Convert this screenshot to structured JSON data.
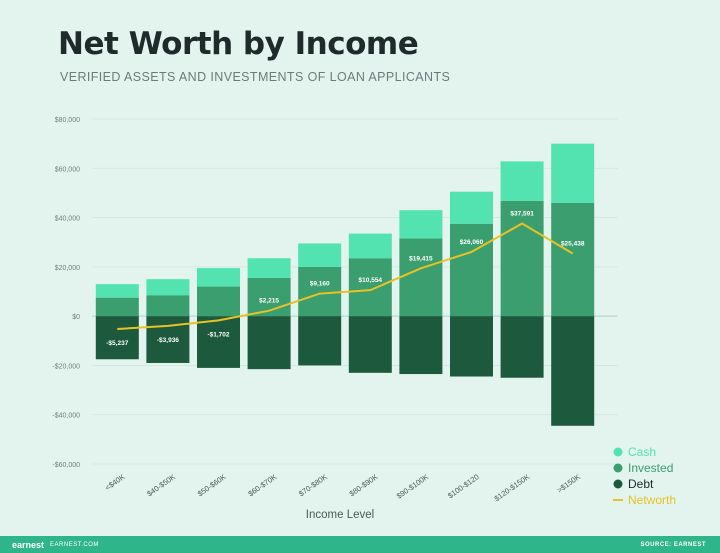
{
  "title": "Net Worth by Income",
  "subtitle": "VERIFIED ASSETS AND INVESTMENTS OF LOAN APPLICANTS",
  "footer": {
    "brand": "earnest",
    "url": "EARNEST.COM",
    "source": "SOURCE: EARNEST"
  },
  "colors": {
    "background": "#e3f3ee",
    "cash": "#52e3b0",
    "invested": "#3a9e6f",
    "debt": "#1d5a3d",
    "networth": "#e8c224",
    "footer": "#2fb58a"
  },
  "chart_data": {
    "type": "bar",
    "stacked": true,
    "xlabel": "Income Level",
    "ylim": [
      -60000,
      80000
    ],
    "yticks": [
      80000,
      60000,
      40000,
      20000,
      0,
      -20000,
      -40000,
      -60000
    ],
    "ytick_labels": [
      "$80,000",
      "$60,000",
      "$40,000",
      "$20,000",
      "$0",
      "-$20,000",
      "-$40,000",
      "-$60,000"
    ],
    "grid": true,
    "legend_position": "bottom-right",
    "categories": [
      "<$40K",
      "$40-$50K",
      "$50-$60K",
      "$60-$70K",
      "$70-$80K",
      "$80-$90K",
      "$90-$100K",
      "$100-$120",
      "$120-$150K",
      ">$150K"
    ],
    "series": [
      {
        "name": "Cash",
        "values": [
          5500,
          6500,
          7500,
          8000,
          9500,
          10000,
          11500,
          13000,
          16000,
          24000
        ]
      },
      {
        "name": "Invested",
        "values": [
          7500,
          8500,
          12000,
          15500,
          20000,
          23500,
          31500,
          37500,
          46800,
          46000
        ]
      },
      {
        "name": "Debt",
        "values": [
          -17500,
          -19000,
          -21000,
          -21500,
          -20000,
          -23000,
          -23500,
          -24500,
          -25000,
          -44500
        ]
      }
    ],
    "line": {
      "name": "Networth",
      "values": [
        -5237,
        -3936,
        -1702,
        2215,
        9160,
        10554,
        19415,
        26060,
        37591,
        25438
      ],
      "labels": [
        "-$5,237",
        "-$3,936",
        "-$1,702",
        "$2,215",
        "$9,160",
        "$10,554",
        "$19,415",
        "$26,060",
        "$37,591",
        "$25,438"
      ]
    }
  }
}
